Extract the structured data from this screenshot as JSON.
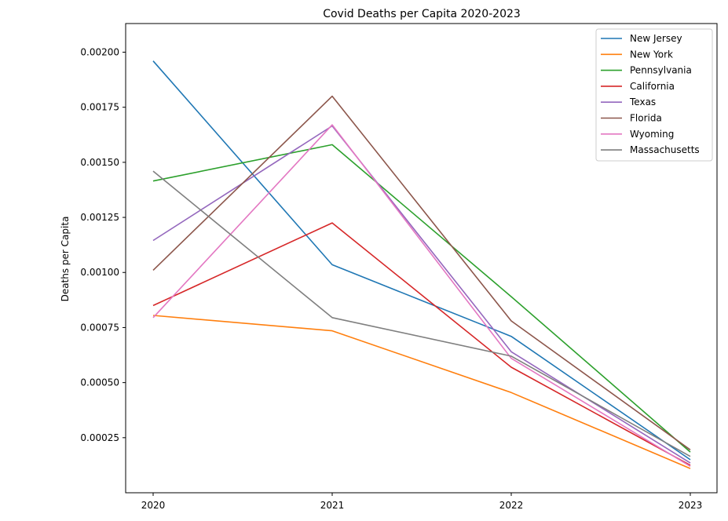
{
  "chart_data": {
    "type": "line",
    "title": "Covid Deaths per Capita 2020-2023",
    "xlabel": "",
    "ylabel": "Deaths per Capita",
    "x": [
      "2020",
      "2021",
      "2022",
      "2023"
    ],
    "ylim": [
      0.0,
      0.00213
    ],
    "yticks": [
      "0.00025",
      "0.00050",
      "0.00075",
      "0.00100",
      "0.00125",
      "0.00150",
      "0.00175",
      "0.00200"
    ],
    "ytick_values": [
      0.00025,
      0.0005,
      0.00075,
      0.001,
      0.00125,
      0.0015,
      0.00175,
      0.002
    ],
    "grid": false,
    "legend_position": "top-right",
    "series": [
      {
        "name": "New Jersey",
        "color": "#1f77b4",
        "values": [
          0.00196,
          0.001035,
          0.00071,
          0.00015
        ]
      },
      {
        "name": "New York",
        "color": "#ff7f0e",
        "values": [
          0.000805,
          0.000735,
          0.000455,
          0.00011
        ]
      },
      {
        "name": "Pennsylvania",
        "color": "#2ca02c",
        "values": [
          0.001415,
          0.00158,
          0.00089,
          0.000185
        ]
      },
      {
        "name": "California",
        "color": "#d62728",
        "values": [
          0.00085,
          0.001225,
          0.00057,
          0.000125
        ]
      },
      {
        "name": "Texas",
        "color": "#9467bd",
        "values": [
          0.001145,
          0.001665,
          0.00064,
          0.000135
        ]
      },
      {
        "name": "Florida",
        "color": "#8c564b",
        "values": [
          0.00101,
          0.0018,
          0.00078,
          0.000195
        ]
      },
      {
        "name": "Wyoming",
        "color": "#e377c2",
        "values": [
          0.000795,
          0.00167,
          0.00061,
          0.00012
        ]
      },
      {
        "name": "Massachusetts",
        "color": "#7f7f7f",
        "values": [
          0.00146,
          0.000795,
          0.00062,
          0.000165
        ]
      }
    ]
  }
}
